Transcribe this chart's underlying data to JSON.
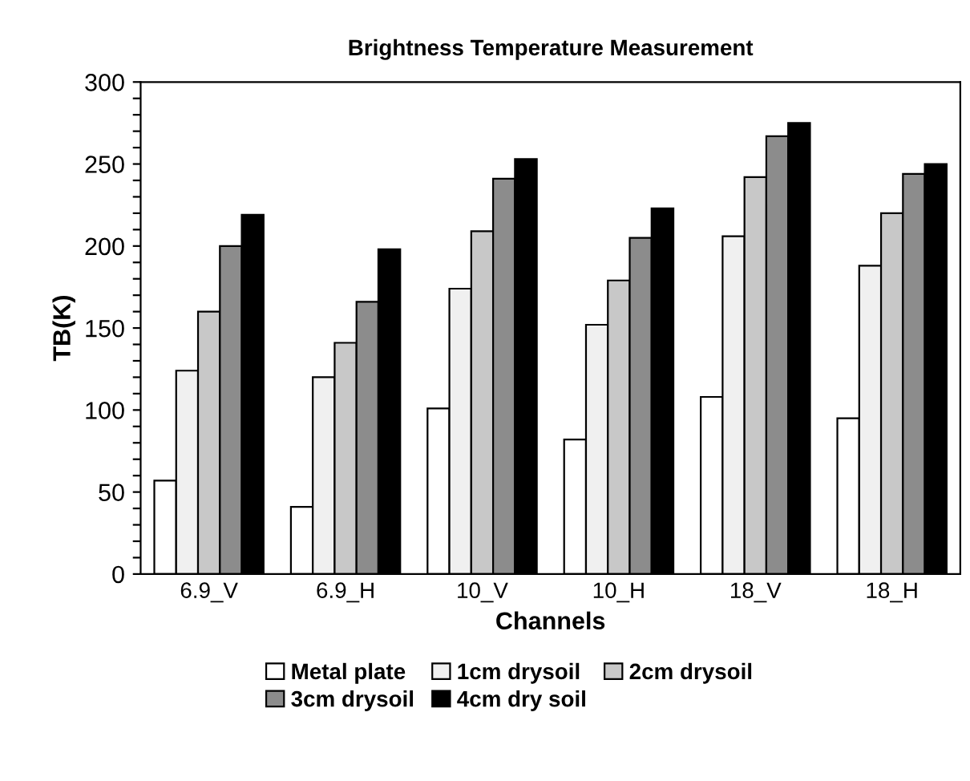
{
  "chart_data": {
    "type": "bar",
    "title": "Brightness Temperature Measurement",
    "xlabel": "Channels",
    "ylabel": "TB(K)",
    "categories": [
      "6.9_V",
      "6.9_H",
      "10_V",
      "10_H",
      "18_V",
      "18_H"
    ],
    "series": [
      {
        "name": "Metal plate",
        "color": "#ffffff",
        "values": [
          57,
          41,
          101,
          82,
          108,
          95
        ]
      },
      {
        "name": "1cm drysoil",
        "color": "#f0f0f0",
        "values": [
          124,
          120,
          174,
          152,
          206,
          188
        ]
      },
      {
        "name": "2cm drysoil",
        "color": "#c8c8c8",
        "values": [
          160,
          141,
          209,
          179,
          242,
          220
        ]
      },
      {
        "name": "3cm drysoil",
        "color": "#8c8c8c",
        "values": [
          200,
          166,
          241,
          205,
          267,
          244
        ]
      },
      {
        "name": "4cm dry soil",
        "color": "#000000",
        "values": [
          219,
          198,
          253,
          223,
          275,
          250
        ]
      }
    ],
    "ylim": [
      0,
      300
    ],
    "yticks": [
      0,
      {
        "value": 10,
        "label": null
      },
      {
        "value": 20,
        "label": null
      },
      {
        "value": 30,
        "label": null
      },
      {
        "value": 40,
        "label": null
      },
      50,
      {
        "value": 60,
        "label": null
      },
      {
        "value": 70,
        "label": null
      },
      {
        "value": 80,
        "label": null
      },
      {
        "value": 90,
        "label": null
      },
      100,
      {
        "value": 110,
        "label": null
      },
      {
        "value": 120,
        "label": null
      },
      {
        "value": 130,
        "label": null
      },
      {
        "value": 140,
        "label": null
      },
      150,
      {
        "value": 160,
        "label": null
      },
      {
        "value": 170,
        "label": null
      },
      {
        "value": 180,
        "label": null
      },
      {
        "value": 190,
        "label": null
      },
      200,
      {
        "value": 210,
        "label": null
      },
      {
        "value": 220,
        "label": null
      },
      {
        "value": 230,
        "label": null
      },
      {
        "value": 240,
        "label": null
      },
      250,
      {
        "value": 260,
        "label": null
      },
      {
        "value": 270,
        "label": null
      },
      {
        "value": 280,
        "label": null
      },
      {
        "value": 290,
        "label": null
      },
      300
    ],
    "grid": false,
    "legend": "bottom"
  }
}
